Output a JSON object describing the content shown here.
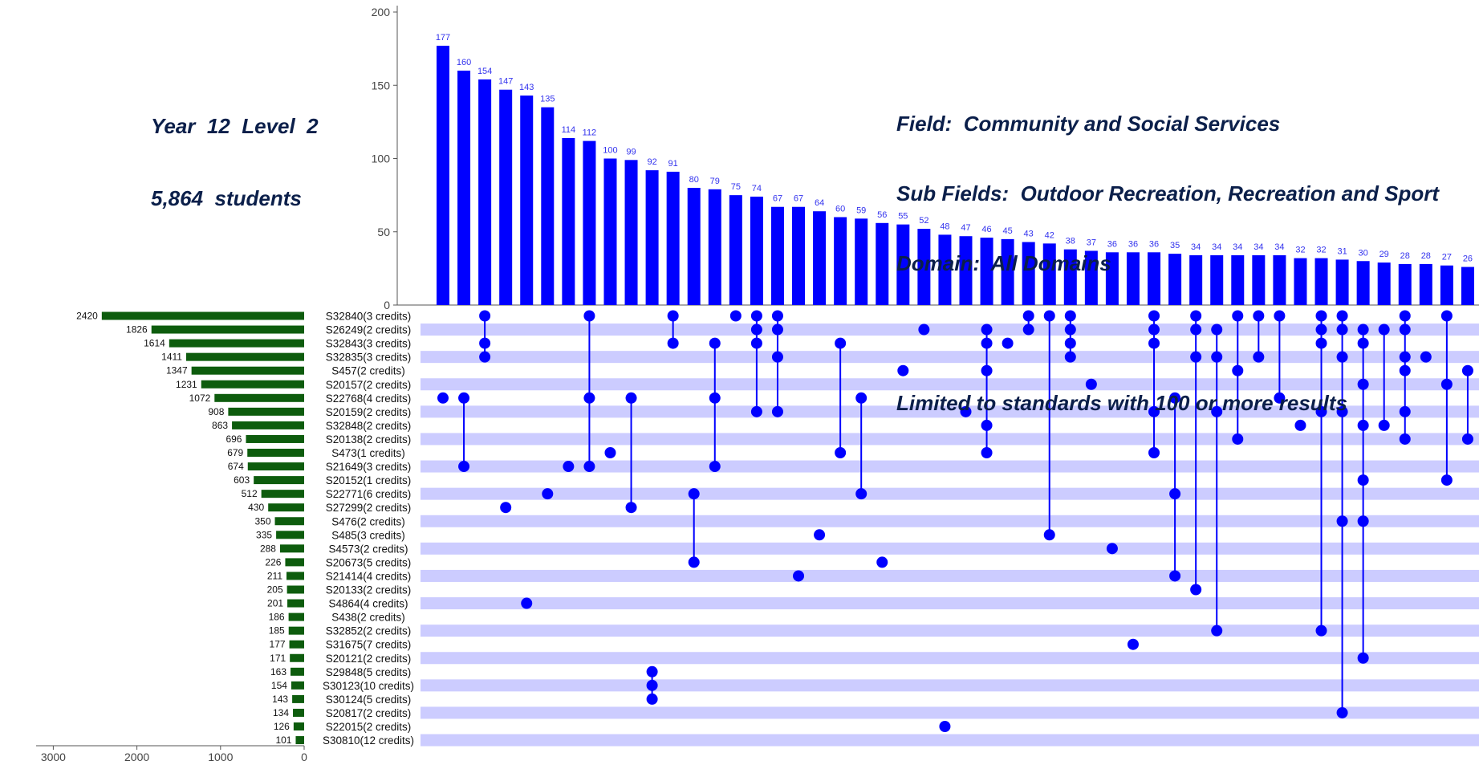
{
  "header": {
    "year_line": "Year  12  Level  2",
    "students_line": "5,864  students"
  },
  "info": {
    "field": "Field:  Community and Social Services",
    "sub_fields": "Sub Fields:  Outdoor Recreation, Recreation and Sport",
    "domain": "Domain:  All Domains",
    "limit_note": "Limited to standards with 100 or more results"
  },
  "colors": {
    "bar": "#0000ff",
    "bar_label": "#3333ee",
    "stripe": "#ccccff",
    "set_bar": "#0d5c0d",
    "dot": "#0000ff",
    "axis": "#555555",
    "text": "#111111"
  },
  "chart_data": [
    {
      "type": "bar",
      "description": "intersection sizes",
      "ylim": [
        0,
        200
      ],
      "yticks": [
        0,
        50,
        100,
        150,
        200
      ],
      "values": [
        177,
        160,
        154,
        147,
        143,
        135,
        114,
        112,
        100,
        99,
        92,
        91,
        80,
        79,
        75,
        74,
        67,
        67,
        64,
        60,
        59,
        56,
        55,
        52,
        48,
        47,
        46,
        45,
        43,
        42,
        38,
        37,
        36,
        36,
        36,
        35,
        34,
        34,
        34,
        34,
        34,
        32,
        32,
        31,
        30,
        29,
        28,
        28,
        27,
        26
      ]
    },
    {
      "type": "bar",
      "orientation": "horizontal",
      "description": "set sizes",
      "xlim": [
        0,
        3000
      ],
      "xticks": [
        3000,
        2000,
        1000,
        0
      ],
      "categories": [
        "S32840(3 credits)",
        "S26249(2 credits)",
        "S32843(3 credits)",
        "S32835(3 credits)",
        "S457(2 credits)",
        "S20157(2 credits)",
        "S22768(4 credits)",
        "S20159(2 credits)",
        "S32848(2 credits)",
        "S20138(2 credits)",
        "S473(1 credits)",
        "S21649(3 credits)",
        "S20152(1 credits)",
        "S22771(6 credits)",
        "S27299(2 credits)",
        "S476(2 credits)",
        "S485(3 credits)",
        "S4573(2 credits)",
        "S20673(5 credits)",
        "S21414(4 credits)",
        "S20133(2 credits)",
        "S4864(4 credits)",
        "S438(2 credits)",
        "S32852(2 credits)",
        "S31675(7 credits)",
        "S20121(2 credits)",
        "S29848(5 credits)",
        "S30123(10 credits)",
        "S30124(5 credits)",
        "S20817(2 credits)",
        "S22015(2 credits)",
        "S30810(12 credits)"
      ],
      "values": [
        2420,
        1826,
        1614,
        1411,
        1347,
        1231,
        1072,
        908,
        863,
        696,
        679,
        674,
        603,
        512,
        430,
        350,
        335,
        288,
        226,
        211,
        205,
        201,
        186,
        185,
        177,
        171,
        163,
        154,
        143,
        134,
        126,
        101
      ]
    },
    {
      "type": "table",
      "description": "intersection membership matrix (row indices of sets per intersection column)",
      "columns": [
        [
          6
        ],
        [
          6,
          11
        ],
        [
          0,
          2,
          3
        ],
        [
          14
        ],
        [
          21
        ],
        [
          13
        ],
        [
          11
        ],
        [
          0,
          6,
          11
        ],
        [
          10
        ],
        [
          6,
          14
        ],
        [
          26,
          27,
          28
        ],
        [
          0,
          2
        ],
        [
          13,
          18
        ],
        [
          2,
          6,
          11
        ],
        [
          0
        ],
        [
          0,
          1,
          2,
          7
        ],
        [
          0,
          1,
          3,
          7
        ],
        [
          19
        ],
        [
          16
        ],
        [
          2,
          10
        ],
        [
          6,
          13
        ],
        [
          18
        ],
        [
          4
        ],
        [
          1
        ],
        [
          30
        ],
        [
          7
        ],
        [
          1,
          2,
          4,
          8,
          10
        ],
        [
          2
        ],
        [
          0,
          1
        ],
        [
          0,
          16
        ],
        [
          0,
          1,
          2,
          3
        ],
        [
          5
        ],
        [
          17
        ],
        [
          24
        ],
        [
          0,
          1,
          2,
          7,
          10
        ],
        [
          6,
          13,
          19
        ],
        [
          0,
          1,
          3,
          20
        ],
        [
          1,
          3,
          7,
          23
        ],
        [
          0,
          4,
          9
        ],
        [
          0,
          3
        ],
        [
          0,
          6
        ],
        [
          8
        ],
        [
          0,
          1,
          2,
          7,
          23
        ],
        [
          0,
          1,
          3,
          7,
          15,
          29
        ],
        [
          1,
          2,
          5,
          8,
          12,
          15,
          25
        ],
        [
          1,
          8
        ],
        [
          0,
          1,
          3,
          4,
          7,
          9
        ],
        [
          3
        ],
        [
          0,
          5,
          12
        ],
        [
          4,
          9
        ]
      ]
    }
  ]
}
